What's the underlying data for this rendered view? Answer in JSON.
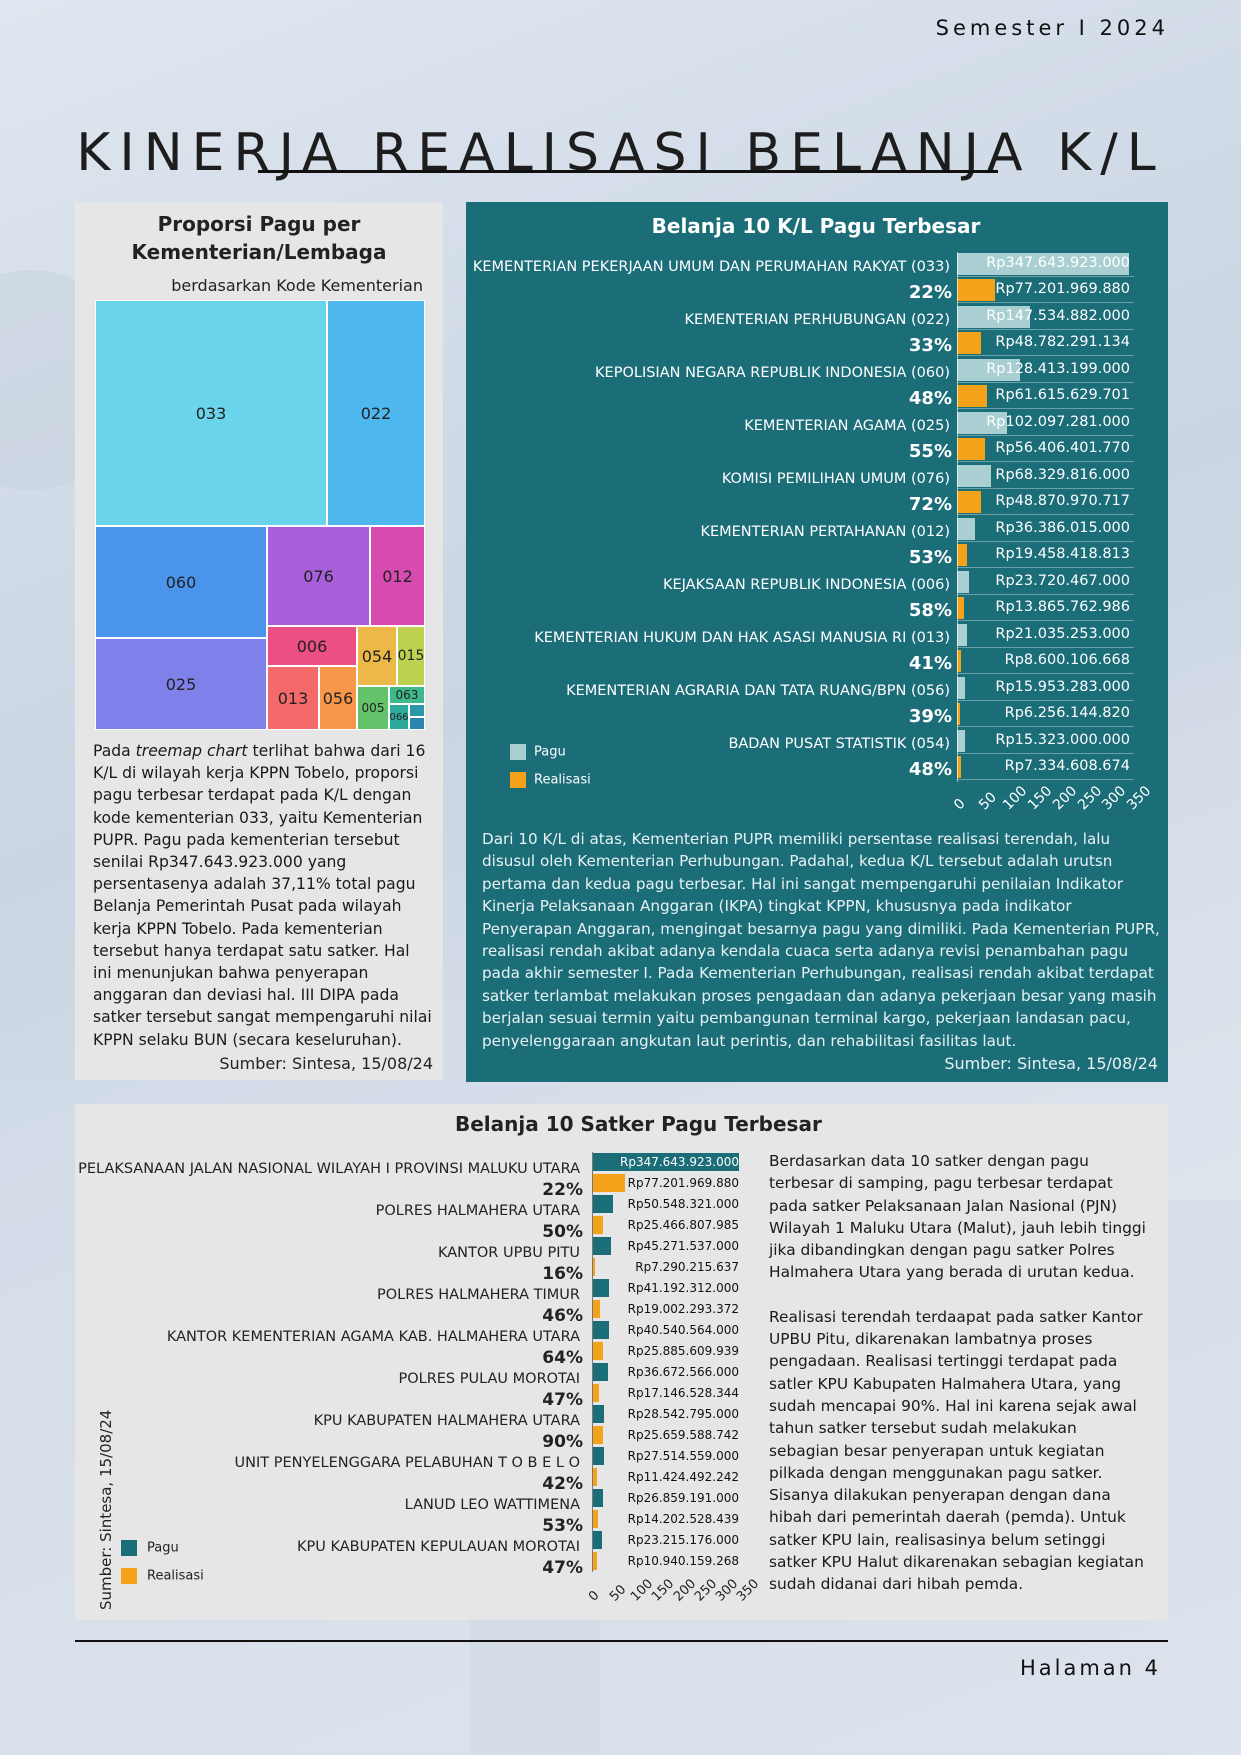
{
  "header": {
    "semester": "Semester I 2024",
    "title": "KINERJA REALISASI BELANJA K/L"
  },
  "footer": {
    "page": "Halaman 4"
  },
  "treemap_panel": {
    "title": "Proporsi Pagu per Kementerian/Lembaga",
    "subtitle": "berdasarkan Kode Kementerian",
    "paragraph_html": "Pada <i>treemap chart</i> terlihat bahwa dari 16 K/L di wilayah kerja KPPN Tobelo, proporsi pagu terbesar terdapat pada K/L dengan kode kementerian 033, yaitu Kementerian PUPR. Pagu pada kementerian tersebut senilai Rp347.643.923.000 yang persentasenya adalah 37,11% total pagu Belanja Pemerintah Pusat pada wilayah kerja KPPN Tobelo. Pada kementerian tersebut hanya terdapat satu satker. Hal ini menunjukan bahwa penyerapan anggaran dan deviasi hal. III DIPA pada satker tersebut sangat mempengaruhi nilai KPPN selaku BUN (secara keseluruhan).",
    "source": "Sumber: Sintesa, 15/08/24"
  },
  "kl_panel": {
    "title": "Belanja 10 K/L Pagu Terbesar",
    "paragraph": "Dari 10 K/L di atas, Kementerian PUPR memiliki persentase realisasi terendah, lalu disusul oleh Kementerian Perhubungan. Padahal, kedua K/L tersebut adalah urutsn pertama dan kedua pagu terbesar. Hal ini sangat mempengaruhi penilaian Indikator Kinerja Pelaksanaan Anggaran (IKPA) tingkat KPPN, khususnya pada indikator Penyerapan Anggaran, mengingat besarnya pagu yang dimiliki. Pada Kementerian PUPR, realisasi rendah akibat adanya kendala cuaca serta adanya revisi penambahan pagu pada akhir semester I. Pada Kementerian Perhubungan, realisasi rendah akibat terdapat satker terlambat melakukan proses pengadaan dan adanya pekerjaan besar yang masih berjalan sesuai termin yaitu pembangunan terminal kargo, pekerjaan landasan pacu, penyelenggaraan angkutan laut perintis, dan rehabilitasi fasilitas laut.",
    "source": "Sumber: Sintesa, 15/08/24"
  },
  "satker_panel": {
    "title": "Belanja 10 Satker Pagu Terbesar",
    "paragraph1": "Berdasarkan data 10 satker dengan pagu terbesar di samping, pagu terbesar terdapat pada satker Pelaksanaan Jalan Nasional (PJN) Wilayah 1 Maluku Utara (Malut), jauh lebih tinggi jika dibandingkan dengan pagu satker Polres Halmahera Utara yang berada di urutan kedua.",
    "paragraph2": "Realisasi terendah terdaapat pada satker Kantor UPBU Pitu, dikarenakan lambatnya proses pengadaan. Realisasi tertinggi terdapat pada satler KPU Kabupaten Halmahera Utara, yang sudah mencapai 90%. Hal ini karena sejak awal tahun satker tersebut sudah melakukan sebagian besar penyerapan untuk kegiatan pilkada dengan menggunakan pagu satker. Sisanya dilakukan penyerapan dengan dana hibah dari pemerintah daerah (pemda). Untuk satker KPU lain, realisasinya belum setinggi satker KPU Halut dikarenakan sebagian kegiatan sudah didanai dari hibah pemda.",
    "source": "Sumber: Sintesa, 15/08/24"
  },
  "colors": {
    "teal_panel": "#1b6d78",
    "pagu_light": "#a9cfd2",
    "realisasi": "#f5a21b",
    "pagu_dark": "#1b6d78"
  },
  "chart_data": [
    {
      "type": "treemap",
      "title": "Proporsi Pagu per Kementerian/Lembaga",
      "labels": [
        "033",
        "022",
        "060",
        "076",
        "012",
        "025",
        "006",
        "054",
        "015",
        "013",
        "056",
        "005",
        "063",
        "066"
      ]
    },
    {
      "type": "bar",
      "title": "Belanja 10 K/L Pagu Terbesar",
      "x_ticks": [
        "0",
        "50",
        "100",
        "150",
        "200",
        "250",
        "300",
        "350"
      ],
      "xlim": [
        0,
        350
      ],
      "legend": [
        "Pagu",
        "Realisasi"
      ],
      "categories": [
        "KEMENTERIAN PEKERJAAN UMUM DAN PERUMAHAN RAKYAT (033)",
        "KEMENTERIAN PERHUBUNGAN (022)",
        "KEPOLISIAN NEGARA REPUBLIK INDONESIA (060)",
        "KEMENTERIAN AGAMA (025)",
        "KOMISI PEMILIHAN UMUM (076)",
        "KEMENTERIAN PERTAHANAN (012)",
        "KEJAKSAAN REPUBLIK INDONESIA (006)",
        "KEMENTERIAN HUKUM DAN HAK ASASI MANUSIA RI (013)",
        "KEMENTERIAN AGRARIA DAN TATA RUANG/BPN (056)",
        "BADAN PUSAT STATISTIK (054)"
      ],
      "percent": [
        "22%",
        "33%",
        "48%",
        "55%",
        "72%",
        "53%",
        "58%",
        "41%",
        "39%",
        "48%"
      ],
      "series": [
        {
          "name": "Pagu",
          "values": [
            347.64,
            147.53,
            128.41,
            102.1,
            68.33,
            36.39,
            23.72,
            21.04,
            15.95,
            15.32
          ],
          "labels": [
            "Rp347.643.923.000",
            "Rp147.534.882.000",
            "Rp128.413.199.000",
            "Rp102.097.281.000",
            "Rp68.329.816.000",
            "Rp36.386.015.000",
            "Rp23.720.467.000",
            "Rp21.035.253.000",
            "Rp15.953.283.000",
            "Rp15.323.000.000"
          ]
        },
        {
          "name": "Realisasi",
          "values": [
            77.2,
            48.78,
            61.62,
            56.41,
            48.87,
            19.46,
            13.87,
            8.6,
            6.26,
            7.33
          ],
          "labels": [
            "Rp77.201.969.880",
            "Rp48.782.291.134",
            "Rp61.615.629.701",
            "Rp56.406.401.770",
            "Rp48.870.970.717",
            "Rp19.458.418.813",
            "Rp13.865.762.986",
            "Rp8.600.106.668",
            "Rp6.256.144.820",
            "Rp7.334.608.674"
          ]
        }
      ]
    },
    {
      "type": "bar",
      "title": "Belanja 10 Satker Pagu Terbesar",
      "x_ticks": [
        "0",
        "50",
        "100",
        "150",
        "200",
        "250",
        "300",
        "350"
      ],
      "xlim": [
        0,
        350
      ],
      "legend": [
        "Pagu",
        "Realisasi"
      ],
      "categories": [
        "PELAKSANAAN JALAN NASIONAL WILAYAH I PROVINSI MALUKU UTARA",
        "POLRES HALMAHERA UTARA",
        "KANTOR UPBU PITU",
        "POLRES HALMAHERA TIMUR",
        "KANTOR KEMENTERIAN AGAMA KAB. HALMAHERA UTARA",
        "POLRES PULAU MOROTAI",
        "KPU KABUPATEN HALMAHERA UTARA",
        "UNIT PENYELENGGARA PELABUHAN T O B E L O",
        "LANUD LEO WATTIMENA",
        "KPU KABUPATEN KEPULAUAN MOROTAI"
      ],
      "percent": [
        "22%",
        "50%",
        "16%",
        "46%",
        "64%",
        "47%",
        "90%",
        "42%",
        "53%",
        "47%"
      ],
      "series": [
        {
          "name": "Pagu",
          "values": [
            347.64,
            50.55,
            45.27,
            41.19,
            40.54,
            36.67,
            28.54,
            27.51,
            26.86,
            23.22
          ],
          "labels": [
            "Rp347.643.923.000",
            "Rp50.548.321.000",
            "Rp45.271.537.000",
            "Rp41.192.312.000",
            "Rp40.540.564.000",
            "Rp36.672.566.000",
            "Rp28.542.795.000",
            "Rp27.514.559.000",
            "Rp26.859.191.000",
            "Rp23.215.176.000"
          ]
        },
        {
          "name": "Realisasi",
          "values": [
            77.2,
            25.47,
            7.29,
            19.0,
            25.89,
            17.15,
            25.66,
            11.42,
            14.2,
            10.94
          ],
          "labels": [
            "Rp77.201.969.880",
            "Rp25.466.807.985",
            "Rp7.290.215.637",
            "Rp19.002.293.372",
            "Rp25.885.609.939",
            "Rp17.146.528.344",
            "Rp25.659.588.742",
            "Rp11.424.492.242",
            "Rp14.202.528.439",
            "Rp10.940.159.268"
          ]
        }
      ]
    }
  ]
}
